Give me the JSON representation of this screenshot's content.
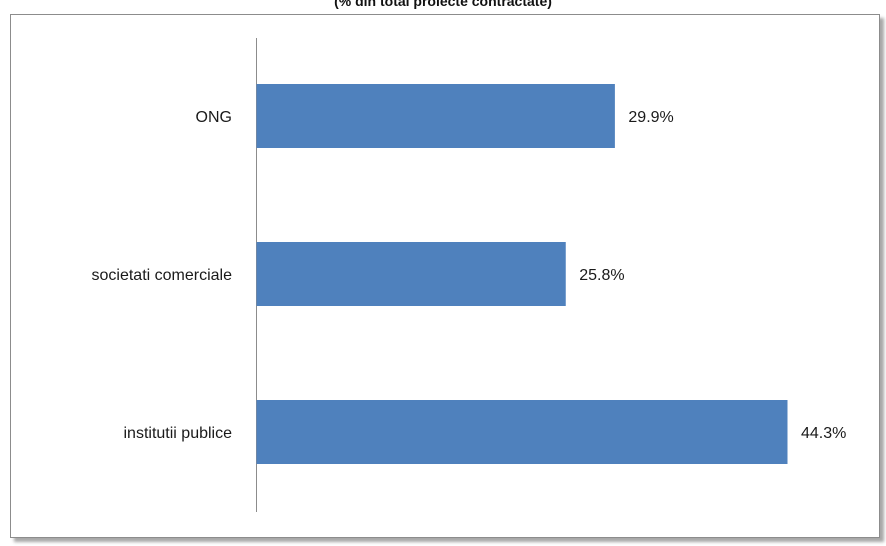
{
  "chart_data": {
    "type": "bar",
    "orientation": "horizontal",
    "title": "(% din total proiecte contractate)",
    "categories": [
      "ONG",
      "societati comerciale",
      "institutii publice"
    ],
    "values": [
      29.9,
      25.8,
      44.3
    ],
    "value_labels": [
      "29.9%",
      "25.8%",
      "44.3%"
    ],
    "bar_color": "#4f81bd",
    "xlim": [
      0,
      45
    ],
    "grid": false,
    "legend": "none"
  }
}
